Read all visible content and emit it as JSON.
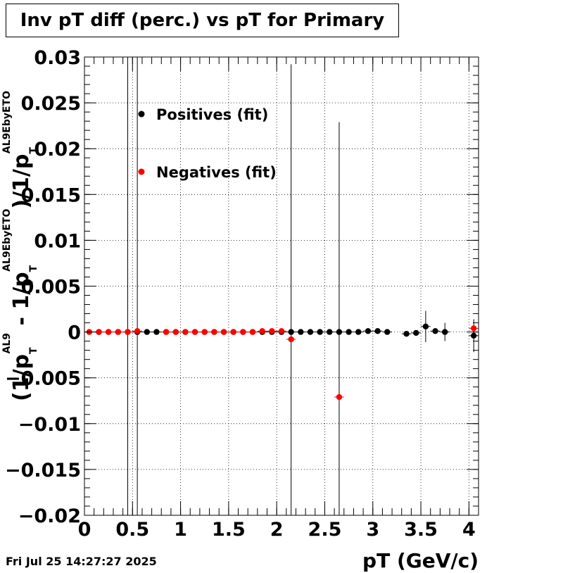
{
  "title": "Inv pT diff (perc.) vs pT for Primary",
  "footer_date": "Fri Jul 25 14:27:27 2025",
  "chart_data": {
    "type": "scatter",
    "title": "Inv pT diff (perc.) vs pT for Primary",
    "xlabel": "pT (GeV/c)",
    "ylabel_parts": {
      "open": "(1/p",
      "sub_t1": "T",
      "sup_al9": "AL9",
      "minus": " - 1/p",
      "sub_t2": "T",
      "sup_eby1": "AL9EbyETO",
      "close": ")/1/p",
      "sub_t3": "T",
      "sup_eby2": "AL9EbyETO"
    },
    "xlim": [
      0,
      4.1
    ],
    "ylim": [
      -0.02,
      0.03
    ],
    "xticks": [
      0,
      0.5,
      1,
      1.5,
      2,
      2.5,
      3,
      3.5,
      4
    ],
    "xtick_labels": [
      "0",
      "0.5",
      "1",
      "1.5",
      "2",
      "2.5",
      "3",
      "3.5",
      "4"
    ],
    "yticks": [
      -0.02,
      -0.015,
      -0.01,
      -0.005,
      0,
      0.005,
      0.01,
      0.015,
      0.02,
      0.025,
      0.03
    ],
    "ytick_labels": [
      "−0.02",
      "−0.015",
      "−0.01",
      "−0.005",
      "0",
      "0.005",
      "0.01",
      "0.015",
      "0.02",
      "0.025",
      "0.03"
    ],
    "grid": true,
    "legend_position": "top-left",
    "series": [
      {
        "name": "Positives (fit)",
        "color": "#000000",
        "points": [
          {
            "x": 0.15,
            "y": 0.0,
            "err": 0.0
          },
          {
            "x": 0.25,
            "y": 0.0,
            "err": 0.0
          },
          {
            "x": 0.35,
            "y": 0.0,
            "err": 0.0
          },
          {
            "x": 0.45,
            "y": 0.0,
            "err": 0.03
          },
          {
            "x": 0.55,
            "y": 0.0,
            "err": 0.03
          },
          {
            "x": 0.65,
            "y": 0.0,
            "err": 0.0
          },
          {
            "x": 0.75,
            "y": 0.0,
            "err": 0.0
          },
          {
            "x": 0.85,
            "y": 0.0,
            "err": 0.0
          },
          {
            "x": 0.95,
            "y": 0.0,
            "err": 0.0
          },
          {
            "x": 1.05,
            "y": 0.0,
            "err": 0.0
          },
          {
            "x": 1.15,
            "y": 0.0,
            "err": 0.0
          },
          {
            "x": 1.25,
            "y": 0.0,
            "err": 0.0
          },
          {
            "x": 1.35,
            "y": 0.0,
            "err": 0.0
          },
          {
            "x": 1.45,
            "y": 0.0,
            "err": 0.0
          },
          {
            "x": 1.55,
            "y": 0.0,
            "err": 0.0
          },
          {
            "x": 1.65,
            "y": 0.0,
            "err": 0.0
          },
          {
            "x": 1.75,
            "y": 0.0,
            "err": 0.0
          },
          {
            "x": 1.85,
            "y": 0.0,
            "err": 0.0
          },
          {
            "x": 1.95,
            "y": 0.0,
            "err": 0.0
          },
          {
            "x": 2.05,
            "y": 0.0,
            "err": 0.0
          },
          {
            "x": 2.15,
            "y": 0.0,
            "err": 0.0
          },
          {
            "x": 2.25,
            "y": 0.0,
            "err": 0.0
          },
          {
            "x": 2.35,
            "y": 0.0,
            "err": 0.0
          },
          {
            "x": 2.45,
            "y": 0.0,
            "err": 0.0
          },
          {
            "x": 2.55,
            "y": 0.0,
            "err": 0.0
          },
          {
            "x": 2.65,
            "y": 0.0,
            "err": 0.0
          },
          {
            "x": 2.75,
            "y": 0.0,
            "err": 0.0
          },
          {
            "x": 2.85,
            "y": 0.0,
            "err": 0.0
          },
          {
            "x": 2.95,
            "y": 0.0001,
            "err": 0.0
          },
          {
            "x": 3.05,
            "y": 0.0001,
            "err": 0.0
          },
          {
            "x": 3.15,
            "y": 0.0,
            "err": 0.0
          },
          {
            "x": 3.35,
            "y": -0.0002,
            "err": 0.0
          },
          {
            "x": 3.45,
            "y": -0.0001,
            "err": 0.0
          },
          {
            "x": 3.55,
            "y": 0.0006,
            "err": 0.0017
          },
          {
            "x": 3.65,
            "y": 0.0001,
            "err": 0.0
          },
          {
            "x": 3.75,
            "y": 0.0,
            "err": 0.001
          },
          {
            "x": 4.05,
            "y": -0.0004,
            "err": 0.0018
          }
        ]
      },
      {
        "name": "Negatives (fit)",
        "color": "#ff0000",
        "points": [
          {
            "x": 0.05,
            "y": 0.0,
            "err": 0.0
          },
          {
            "x": 0.15,
            "y": 0.0,
            "err": 0.0
          },
          {
            "x": 0.25,
            "y": 0.0,
            "err": 0.0
          },
          {
            "x": 0.35,
            "y": 0.0,
            "err": 0.0
          },
          {
            "x": 0.45,
            "y": 0.0,
            "err": 0.0
          },
          {
            "x": 0.55,
            "y": 0.0001,
            "err": 0.0
          },
          {
            "x": 0.85,
            "y": 0.0,
            "err": 0.0
          },
          {
            "x": 0.95,
            "y": 0.0,
            "err": 0.0
          },
          {
            "x": 1.05,
            "y": 0.0,
            "err": 0.0
          },
          {
            "x": 1.15,
            "y": 0.0,
            "err": 0.0
          },
          {
            "x": 1.25,
            "y": 0.0,
            "err": 0.0
          },
          {
            "x": 1.35,
            "y": 0.0,
            "err": 0.0
          },
          {
            "x": 1.45,
            "y": 0.0,
            "err": 0.0
          },
          {
            "x": 1.55,
            "y": 0.0,
            "err": 0.0
          },
          {
            "x": 1.65,
            "y": 0.0,
            "err": 0.0
          },
          {
            "x": 1.75,
            "y": 0.0,
            "err": 0.0
          },
          {
            "x": 1.85,
            "y": 0.0001,
            "err": 0.0
          },
          {
            "x": 1.95,
            "y": 0.0001,
            "err": 0.0
          },
          {
            "x": 2.05,
            "y": 0.0001,
            "err": 0.0
          },
          {
            "x": 2.15,
            "y": -0.0008,
            "err": 0.03
          },
          {
            "x": 2.65,
            "y": -0.0071,
            "err": 0.03
          },
          {
            "x": 4.05,
            "y": 0.0004,
            "err": 0.0
          }
        ]
      }
    ]
  }
}
